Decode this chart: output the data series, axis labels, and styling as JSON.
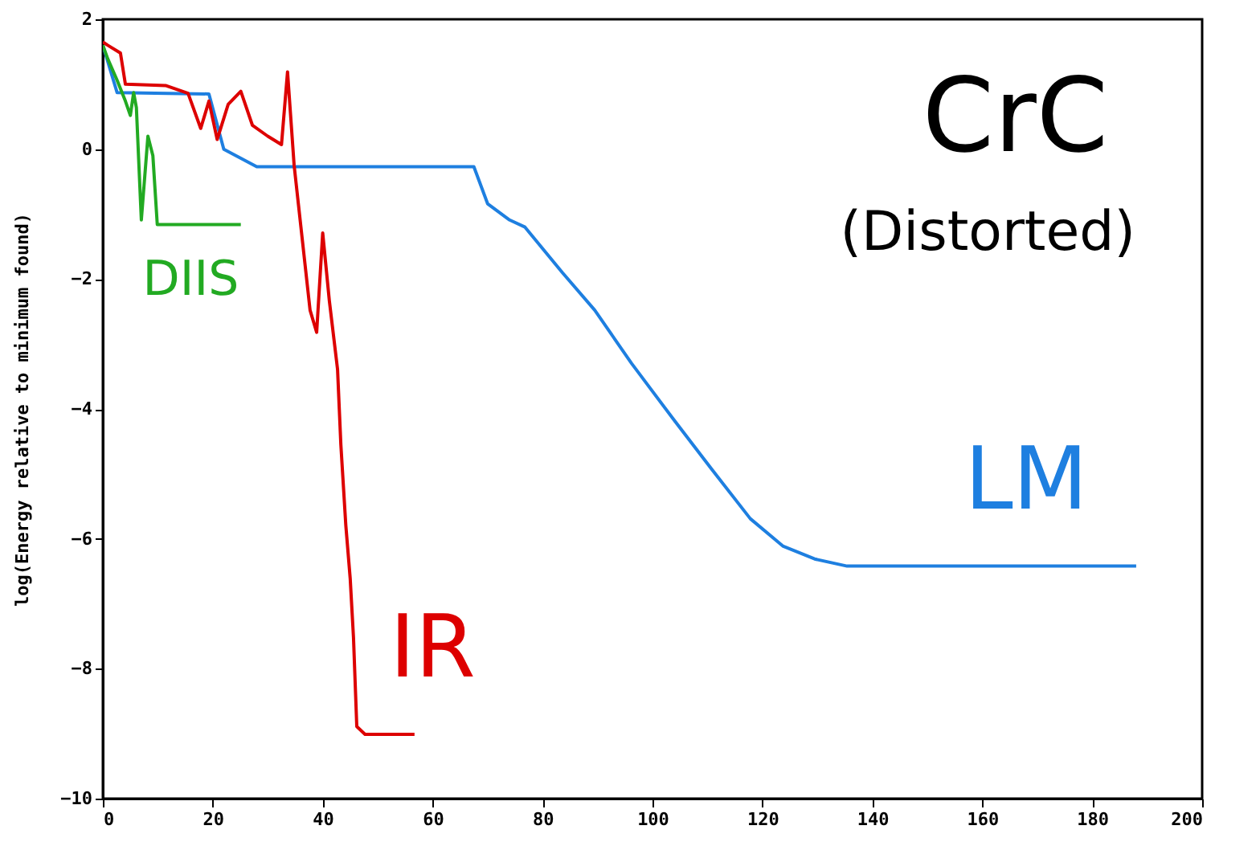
{
  "chart_data": {
    "type": "line",
    "title": "CrC",
    "subtitle": "(Distorted)",
    "ylabel": "log(Energy relative to minimum found)",
    "xlim": [
      0,
      200
    ],
    "xticks": [
      0,
      20,
      40,
      60,
      80,
      100,
      120,
      140,
      160,
      180,
      200
    ],
    "ylim": [
      -10,
      2
    ],
    "yticks": [
      -10,
      -8,
      -6,
      -4,
      -2,
      0,
      2
    ],
    "grid": false,
    "marker": "none",
    "line_style": "solid",
    "series": [
      {
        "name": "LM",
        "color": "#1e7fe0",
        "x": [
          0,
          2.6,
          19.3,
          22,
          28,
          67.5,
          70,
          74,
          76.8,
          83.6,
          89.5,
          96.2,
          104,
          110.8,
          117.8,
          123.7,
          129.5,
          135.4,
          188
        ],
        "values": [
          1.6,
          0.87,
          0.85,
          0,
          -0.27,
          -0.27,
          -0.84,
          -1.09,
          -1.2,
          -1.9,
          -2.48,
          -3.3,
          -4.18,
          -4.93,
          -5.69,
          -6.11,
          -6.31,
          -6.42,
          -6.42
        ]
      },
      {
        "name": "IR",
        "color": "#dd0000",
        "x": [
          0,
          0.9,
          3.2,
          4.1,
          11.4,
          15.5,
          17.8,
          19.3,
          20.8,
          22.8,
          25.1,
          27.2,
          30,
          32.5,
          33.6,
          34.8,
          37.7,
          38.9,
          40,
          41.2,
          42.7,
          43.3,
          44.2,
          45,
          45.6,
          46.2,
          47.7,
          56.7
        ],
        "values": [
          1.65,
          1.6,
          1.48,
          1.0,
          0.98,
          0.86,
          0.32,
          0.74,
          0.15,
          0.69,
          0.89,
          0.37,
          0.2,
          0.07,
          1.19,
          -0.25,
          -2.48,
          -2.82,
          -1.29,
          -2.33,
          -3.39,
          -4.55,
          -5.79,
          -6.61,
          -7.52,
          -8.89,
          -9.01,
          -9.01
        ]
      },
      {
        "name": "DIIS",
        "color": "#22aa22",
        "x": [
          0,
          0.9,
          2.6,
          4.1,
          5,
          5.6,
          6.1,
          7,
          8.2,
          9.1,
          9.9,
          25.1
        ],
        "values": [
          1.6,
          1.39,
          1.06,
          0.74,
          0.52,
          0.87,
          0.64,
          -1.09,
          0.2,
          -0.1,
          -1.16,
          -1.16
        ]
      }
    ]
  }
}
